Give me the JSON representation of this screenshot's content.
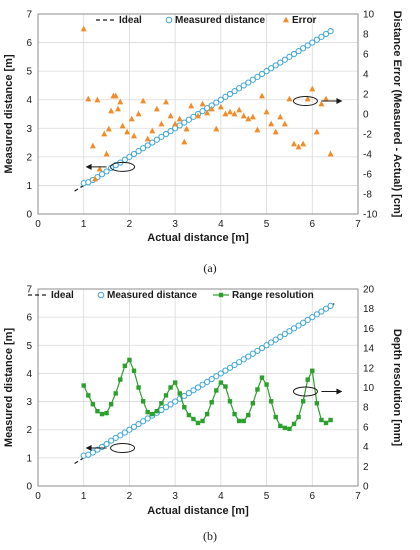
{
  "chart_data": [
    {
      "type": "scatter",
      "panel_label": "(a)",
      "xlabel": "Actual distance [m]",
      "ylabel": "Measured distance [m]",
      "y2label": "Distance Error (Measured - Actual) [cm]",
      "xlim": [
        0,
        7
      ],
      "ylim": [
        0,
        7
      ],
      "y2lim": [
        -10,
        10
      ],
      "xticks": [
        "0",
        "1",
        "2",
        "3",
        "4",
        "5",
        "6",
        "7"
      ],
      "yticks": [
        "0",
        "1",
        "2",
        "3",
        "4",
        "5",
        "6",
        "7"
      ],
      "y2ticks": [
        "-10",
        "-8",
        "-6",
        "-4",
        "-2",
        "0",
        "2",
        "4",
        "6",
        "8",
        "10"
      ],
      "grid": true,
      "legend_position": "top",
      "series": [
        {
          "name": "Ideal",
          "kind": "dashed-line",
          "axis": "left",
          "color": "#1a1a1a",
          "x": [
            0.8,
            6.5
          ],
          "y": [
            0.8,
            6.5
          ]
        },
        {
          "name": "Measured distance",
          "kind": "open-circle",
          "axis": "left",
          "color": "#3fa7d6",
          "x": [
            1.0,
            1.1,
            1.2,
            1.3,
            1.4,
            1.5,
            1.6,
            1.7,
            1.8,
            1.9,
            2.0,
            2.1,
            2.2,
            2.3,
            2.4,
            2.5,
            2.6,
            2.7,
            2.8,
            2.9,
            3.0,
            3.1,
            3.2,
            3.3,
            3.4,
            3.5,
            3.6,
            3.7,
            3.8,
            3.9,
            4.0,
            4.1,
            4.2,
            4.3,
            4.4,
            4.5,
            4.6,
            4.7,
            4.8,
            4.9,
            5.0,
            5.1,
            5.2,
            5.3,
            5.4,
            5.5,
            5.6,
            5.7,
            5.8,
            5.9,
            6.0,
            6.1,
            6.2,
            6.3,
            6.4
          ],
          "y": [
            1.08,
            1.11,
            1.19,
            1.29,
            1.39,
            1.49,
            1.61,
            1.71,
            1.8,
            1.9,
            2.0,
            2.1,
            2.2,
            2.3,
            2.4,
            2.5,
            2.6,
            2.7,
            2.8,
            2.9,
            3.0,
            3.1,
            3.2,
            3.3,
            3.4,
            3.5,
            3.6,
            3.7,
            3.8,
            3.9,
            4.0,
            4.1,
            4.2,
            4.3,
            4.4,
            4.5,
            4.6,
            4.7,
            4.8,
            4.9,
            5.0,
            5.1,
            5.2,
            5.3,
            5.4,
            5.5,
            5.6,
            5.7,
            5.8,
            5.9,
            6.0,
            6.1,
            6.2,
            6.3,
            6.4
          ]
        },
        {
          "name": "Error",
          "kind": "filled-triangle",
          "axis": "right",
          "color": "#f28c28",
          "x": [
            1.0,
            1.1,
            1.2,
            1.25,
            1.3,
            1.35,
            1.45,
            1.5,
            1.55,
            1.6,
            1.65,
            1.7,
            1.75,
            1.8,
            1.85,
            1.95,
            2.05,
            2.1,
            2.2,
            2.3,
            2.4,
            2.5,
            2.6,
            2.7,
            2.8,
            2.9,
            3.0,
            3.1,
            3.2,
            3.25,
            3.35,
            3.5,
            3.6,
            3.7,
            3.8,
            3.9,
            4.0,
            4.1,
            4.2,
            4.3,
            4.4,
            4.5,
            4.6,
            4.7,
            4.8,
            4.9,
            5.0,
            5.1,
            5.2,
            5.3,
            5.4,
            5.5,
            5.6,
            5.7,
            5.8,
            5.9,
            6.0,
            6.1,
            6.2,
            6.3,
            6.4
          ],
          "y": [
            8.5,
            1.5,
            -3.2,
            -6.5,
            1.4,
            -5.5,
            -2.0,
            -4.0,
            -1.5,
            0.3,
            1.8,
            1.8,
            0.5,
            1.2,
            -1.2,
            -1.8,
            -0.5,
            -2.2,
            0.0,
            1.3,
            -2.5,
            -1.7,
            0.5,
            -1.0,
            1.2,
            -0.2,
            -1.0,
            -0.5,
            -2.8,
            -1.5,
            0.8,
            -0.2,
            1.0,
            0.1,
            0.5,
            -1.5,
            0.7,
            0.0,
            0.2,
            0.0,
            0.4,
            -0.2,
            -0.5,
            -0.3,
            -1.6,
            1.8,
            0.2,
            -1.0,
            -1.8,
            -0.3,
            -1.0,
            1.5,
            -3.0,
            -3.3,
            -3.0,
            1.5,
            2.5,
            -1.8,
            1.0,
            1.5,
            -4.0
          ]
        }
      ]
    },
    {
      "type": "scatter",
      "panel_label": "(b)",
      "xlabel": "Actual distance [m]",
      "ylabel": "Measured distance [m]",
      "y2label": "Depth resolution [mm]",
      "xlim": [
        0,
        7
      ],
      "ylim": [
        0,
        7
      ],
      "y2lim": [
        0,
        20
      ],
      "xticks": [
        "0",
        "1",
        "2",
        "3",
        "4",
        "5",
        "6",
        "7"
      ],
      "yticks": [
        "0",
        "1",
        "2",
        "3",
        "4",
        "5",
        "6",
        "7"
      ],
      "y2ticks": [
        "0",
        "2",
        "4",
        "6",
        "8",
        "10",
        "12",
        "14",
        "16",
        "18",
        "20"
      ],
      "grid": true,
      "legend_position": "top",
      "series": [
        {
          "name": "Ideal",
          "kind": "dashed-line",
          "axis": "left",
          "color": "#1a1a1a",
          "x": [
            0.8,
            6.5
          ],
          "y": [
            0.8,
            6.5
          ]
        },
        {
          "name": "Measured distance",
          "kind": "open-circle",
          "axis": "left",
          "color": "#3fa7d6",
          "x": [
            1.0,
            1.1,
            1.2,
            1.3,
            1.4,
            1.5,
            1.6,
            1.7,
            1.8,
            1.9,
            2.0,
            2.1,
            2.2,
            2.3,
            2.4,
            2.5,
            2.6,
            2.7,
            2.8,
            2.9,
            3.0,
            3.1,
            3.2,
            3.3,
            3.4,
            3.5,
            3.6,
            3.7,
            3.8,
            3.9,
            4.0,
            4.1,
            4.2,
            4.3,
            4.4,
            4.5,
            4.6,
            4.7,
            4.8,
            4.9,
            5.0,
            5.1,
            5.2,
            5.3,
            5.4,
            5.5,
            5.6,
            5.7,
            5.8,
            5.9,
            6.0,
            6.1,
            6.2,
            6.3,
            6.4
          ],
          "y": [
            1.08,
            1.11,
            1.19,
            1.29,
            1.39,
            1.49,
            1.61,
            1.71,
            1.8,
            1.9,
            2.0,
            2.1,
            2.2,
            2.3,
            2.4,
            2.5,
            2.6,
            2.7,
            2.8,
            2.9,
            3.0,
            3.1,
            3.2,
            3.3,
            3.4,
            3.5,
            3.6,
            3.7,
            3.8,
            3.9,
            4.0,
            4.1,
            4.2,
            4.3,
            4.4,
            4.5,
            4.6,
            4.7,
            4.8,
            4.9,
            5.0,
            5.1,
            5.2,
            5.3,
            5.4,
            5.5,
            5.6,
            5.7,
            5.8,
            5.9,
            6.0,
            6.1,
            6.2,
            6.3,
            6.4
          ]
        },
        {
          "name": "Range resolution",
          "kind": "square-line",
          "axis": "right",
          "color": "#2ca02c",
          "x": [
            1.0,
            1.1,
            1.2,
            1.3,
            1.4,
            1.5,
            1.6,
            1.7,
            1.8,
            1.9,
            2.0,
            2.1,
            2.2,
            2.3,
            2.4,
            2.5,
            2.6,
            2.7,
            2.8,
            2.9,
            3.0,
            3.1,
            3.2,
            3.3,
            3.4,
            3.5,
            3.6,
            3.7,
            3.8,
            3.9,
            4.0,
            4.1,
            4.2,
            4.3,
            4.4,
            4.5,
            4.6,
            4.7,
            4.8,
            4.9,
            5.0,
            5.1,
            5.2,
            5.3,
            5.4,
            5.5,
            5.6,
            5.7,
            5.8,
            5.9,
            6.0,
            6.1,
            6.2,
            6.3,
            6.4
          ],
          "y": [
            10.2,
            9.2,
            8.3,
            7.6,
            7.3,
            7.4,
            8.3,
            9.4,
            10.8,
            12.2,
            12.8,
            11.7,
            10.0,
            8.6,
            7.5,
            7.3,
            7.6,
            8.4,
            9.2,
            10.0,
            10.5,
            9.4,
            8.0,
            7.2,
            6.8,
            6.4,
            6.6,
            7.3,
            8.5,
            9.7,
            10.5,
            10.1,
            8.6,
            7.3,
            6.6,
            6.6,
            7.2,
            8.4,
            9.8,
            11.0,
            10.3,
            8.6,
            7.0,
            6.1,
            5.9,
            5.8,
            6.3,
            7.0,
            8.6,
            10.8,
            11.7,
            8.4,
            6.7,
            6.4,
            6.7
          ]
        }
      ]
    }
  ]
}
